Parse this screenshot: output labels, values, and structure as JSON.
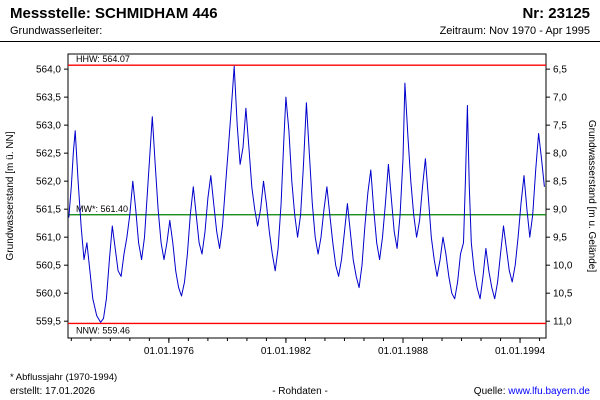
{
  "header": {
    "station_label": "Messstelle: SCHMIDHAM 446",
    "number_label": "Nr: 23125",
    "aquifer_label": "Grundwasserleiter:",
    "period_label": "Zeitraum: Nov 1970 - Apr 1995"
  },
  "footer": {
    "footnote": "* Abflussjahr (1970-1994)",
    "created": "erstellt: 17.01.2026",
    "data_type": "- Rohdaten -",
    "source_label": "Quelle: ",
    "source_link": "www.lfu.bayern.de"
  },
  "chart_data": {
    "type": "line",
    "title": "Messstelle: SCHMIDHAM 446",
    "ylabel_left": "Grundwasserstand [m ü. NN]",
    "ylabel_right": "Grundwasserstand [m u. Gelände]",
    "x_range": [
      1970.83,
      1995.33
    ],
    "ylim_left": [
      559.2,
      564.27
    ],
    "grid": false,
    "legend": "none",
    "left_ticks": [
      {
        "label": "564,0",
        "value": 564.0
      },
      {
        "label": "563,5",
        "value": 563.5
      },
      {
        "label": "563,0",
        "value": 563.0
      },
      {
        "label": "562,5",
        "value": 562.5
      },
      {
        "label": "562,0",
        "value": 562.0
      },
      {
        "label": "561,5",
        "value": 561.5
      },
      {
        "label": "561,0",
        "value": 561.0
      },
      {
        "label": "560,5",
        "value": 560.5
      },
      {
        "label": "560,0",
        "value": 560.0
      },
      {
        "label": "559,5",
        "value": 559.5
      }
    ],
    "right_ticks": [
      {
        "label": "6,5",
        "at": 564.0
      },
      {
        "label": "7,0",
        "at": 563.5
      },
      {
        "label": "7,5",
        "at": 563.0
      },
      {
        "label": "8,0",
        "at": 562.5
      },
      {
        "label": "8,5",
        "at": 562.0
      },
      {
        "label": "9,0",
        "at": 561.5
      },
      {
        "label": "9,5",
        "at": 561.0
      },
      {
        "label": "10,0",
        "at": 560.5
      },
      {
        "label": "10,5",
        "at": 560.0
      },
      {
        "label": "11,0",
        "at": 559.5
      }
    ],
    "x_ticks": [
      {
        "label": "01.01.1976",
        "value": 1976.0
      },
      {
        "label": "01.01.1982",
        "value": 1982.0
      },
      {
        "label": "01.01.1988",
        "value": 1988.0
      },
      {
        "label": "01.01.1994",
        "value": 1994.0
      }
    ],
    "reference_lines": [
      {
        "name": "HHW",
        "label": "HHW: 564.07",
        "value": 564.07,
        "color": "#ff0000",
        "label_position": "above"
      },
      {
        "name": "MW",
        "label": "MW*: 561.40",
        "value": 561.4,
        "color": "#008000",
        "label_position": "above"
      },
      {
        "name": "NNW",
        "label": "NNW: 559.46",
        "value": 559.46,
        "color": "#ff0000",
        "label_position": "below"
      }
    ],
    "series": [
      {
        "name": "Rohdaten",
        "color": "#0000cc",
        "points": [
          [
            1970.87,
            561.35
          ],
          [
            1971.0,
            561.9
          ],
          [
            1971.1,
            562.5
          ],
          [
            1971.2,
            562.9
          ],
          [
            1971.35,
            562.0
          ],
          [
            1971.5,
            561.2
          ],
          [
            1971.65,
            560.6
          ],
          [
            1971.8,
            560.9
          ],
          [
            1971.95,
            560.4
          ],
          [
            1972.1,
            559.9
          ],
          [
            1972.3,
            559.6
          ],
          [
            1972.5,
            559.48
          ],
          [
            1972.65,
            559.55
          ],
          [
            1972.8,
            559.9
          ],
          [
            1972.95,
            560.6
          ],
          [
            1973.1,
            561.2
          ],
          [
            1973.25,
            560.8
          ],
          [
            1973.4,
            560.4
          ],
          [
            1973.55,
            560.3
          ],
          [
            1973.7,
            560.7
          ],
          [
            1973.85,
            561.0
          ],
          [
            1974.0,
            561.4
          ],
          [
            1974.15,
            562.0
          ],
          [
            1974.3,
            561.5
          ],
          [
            1974.45,
            560.9
          ],
          [
            1974.6,
            560.6
          ],
          [
            1974.75,
            561.0
          ],
          [
            1974.9,
            561.8
          ],
          [
            1975.05,
            562.6
          ],
          [
            1975.15,
            563.15
          ],
          [
            1975.3,
            562.3
          ],
          [
            1975.45,
            561.5
          ],
          [
            1975.6,
            560.9
          ],
          [
            1975.75,
            560.6
          ],
          [
            1975.9,
            560.9
          ],
          [
            1976.05,
            561.3
          ],
          [
            1976.2,
            560.9
          ],
          [
            1976.35,
            560.4
          ],
          [
            1976.5,
            560.1
          ],
          [
            1976.65,
            559.95
          ],
          [
            1976.8,
            560.2
          ],
          [
            1976.95,
            560.7
          ],
          [
            1977.1,
            561.4
          ],
          [
            1977.25,
            561.9
          ],
          [
            1977.4,
            561.4
          ],
          [
            1977.55,
            560.9
          ],
          [
            1977.7,
            560.7
          ],
          [
            1977.85,
            561.1
          ],
          [
            1978.0,
            561.7
          ],
          [
            1978.15,
            562.1
          ],
          [
            1978.3,
            561.6
          ],
          [
            1978.45,
            561.1
          ],
          [
            1978.6,
            560.8
          ],
          [
            1978.75,
            561.2
          ],
          [
            1978.9,
            561.9
          ],
          [
            1979.05,
            562.6
          ],
          [
            1979.2,
            563.3
          ],
          [
            1979.35,
            564.05
          ],
          [
            1979.5,
            563.0
          ],
          [
            1979.65,
            562.3
          ],
          [
            1979.8,
            562.6
          ],
          [
            1979.95,
            563.3
          ],
          [
            1980.1,
            562.6
          ],
          [
            1980.25,
            561.9
          ],
          [
            1980.4,
            561.5
          ],
          [
            1980.55,
            561.2
          ],
          [
            1980.7,
            561.5
          ],
          [
            1980.85,
            562.0
          ],
          [
            1981.0,
            561.6
          ],
          [
            1981.15,
            561.1
          ],
          [
            1981.3,
            560.7
          ],
          [
            1981.45,
            560.4
          ],
          [
            1981.6,
            560.8
          ],
          [
            1981.75,
            561.6
          ],
          [
            1981.9,
            562.8
          ],
          [
            1982.0,
            563.5
          ],
          [
            1982.15,
            562.9
          ],
          [
            1982.3,
            562.0
          ],
          [
            1982.45,
            561.4
          ],
          [
            1982.6,
            561.0
          ],
          [
            1982.75,
            561.4
          ],
          [
            1982.9,
            562.3
          ],
          [
            1983.05,
            563.4
          ],
          [
            1983.2,
            562.5
          ],
          [
            1983.35,
            561.6
          ],
          [
            1983.5,
            561.0
          ],
          [
            1983.65,
            560.7
          ],
          [
            1983.8,
            561.0
          ],
          [
            1983.95,
            561.5
          ],
          [
            1984.1,
            561.9
          ],
          [
            1984.25,
            561.4
          ],
          [
            1984.4,
            560.9
          ],
          [
            1984.55,
            560.5
          ],
          [
            1984.7,
            560.3
          ],
          [
            1984.85,
            560.6
          ],
          [
            1985.0,
            561.1
          ],
          [
            1985.15,
            561.6
          ],
          [
            1985.3,
            561.1
          ],
          [
            1985.45,
            560.6
          ],
          [
            1985.6,
            560.3
          ],
          [
            1985.75,
            560.1
          ],
          [
            1985.9,
            560.5
          ],
          [
            1986.05,
            561.2
          ],
          [
            1986.2,
            561.8
          ],
          [
            1986.35,
            562.2
          ],
          [
            1986.5,
            561.5
          ],
          [
            1986.65,
            560.9
          ],
          [
            1986.8,
            560.6
          ],
          [
            1986.95,
            561.0
          ],
          [
            1987.1,
            561.6
          ],
          [
            1987.25,
            562.3
          ],
          [
            1987.4,
            561.7
          ],
          [
            1987.55,
            561.1
          ],
          [
            1987.7,
            560.8
          ],
          [
            1987.85,
            561.4
          ],
          [
            1988.0,
            562.4
          ],
          [
            1988.1,
            563.75
          ],
          [
            1988.25,
            562.8
          ],
          [
            1988.4,
            562.0
          ],
          [
            1988.55,
            561.4
          ],
          [
            1988.7,
            561.0
          ],
          [
            1988.85,
            561.3
          ],
          [
            1989.0,
            561.9
          ],
          [
            1989.15,
            562.4
          ],
          [
            1989.3,
            561.7
          ],
          [
            1989.45,
            561.0
          ],
          [
            1989.6,
            560.6
          ],
          [
            1989.75,
            560.3
          ],
          [
            1989.9,
            560.6
          ],
          [
            1990.05,
            561.0
          ],
          [
            1990.2,
            560.7
          ],
          [
            1990.35,
            560.3
          ],
          [
            1990.5,
            560.0
          ],
          [
            1990.65,
            559.9
          ],
          [
            1990.8,
            560.2
          ],
          [
            1990.95,
            560.7
          ],
          [
            1991.1,
            560.9
          ],
          [
            1991.2,
            562.0
          ],
          [
            1991.3,
            563.35
          ],
          [
            1991.4,
            561.9
          ],
          [
            1991.5,
            560.9
          ],
          [
            1991.65,
            560.4
          ],
          [
            1991.8,
            560.1
          ],
          [
            1991.95,
            559.9
          ],
          [
            1992.1,
            560.3
          ],
          [
            1992.25,
            560.8
          ],
          [
            1992.4,
            560.4
          ],
          [
            1992.55,
            560.1
          ],
          [
            1992.7,
            559.9
          ],
          [
            1992.85,
            560.2
          ],
          [
            1993.0,
            560.7
          ],
          [
            1993.15,
            561.2
          ],
          [
            1993.3,
            560.8
          ],
          [
            1993.45,
            560.4
          ],
          [
            1993.6,
            560.2
          ],
          [
            1993.75,
            560.5
          ],
          [
            1993.9,
            561.0
          ],
          [
            1994.05,
            561.6
          ],
          [
            1994.2,
            562.1
          ],
          [
            1994.35,
            561.5
          ],
          [
            1994.5,
            561.0
          ],
          [
            1994.65,
            561.4
          ],
          [
            1994.8,
            562.2
          ],
          [
            1994.95,
            562.85
          ],
          [
            1995.1,
            562.4
          ],
          [
            1995.25,
            561.9
          ]
        ]
      }
    ],
    "colors": {
      "series": "#0000cc",
      "hhw_nnw": "#ff0000",
      "mw": "#008000",
      "frame": "#000000",
      "link": "#0000ff"
    }
  }
}
